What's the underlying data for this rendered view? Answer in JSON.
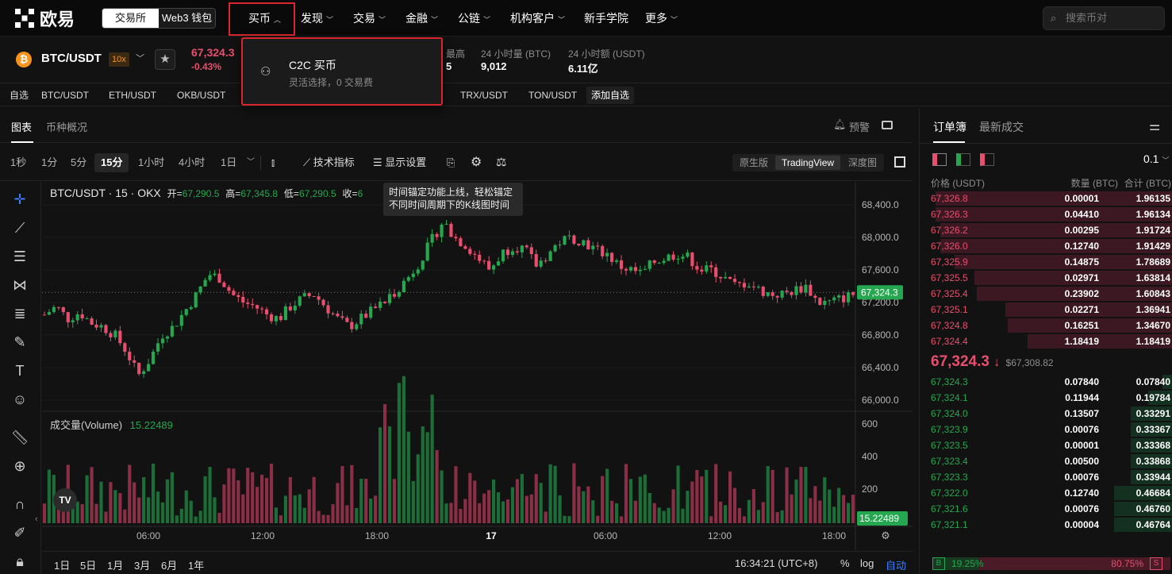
{
  "nav": {
    "brand": "欧易",
    "seg": {
      "exchange": "交易所",
      "wallet": "Web3 钱包"
    },
    "items": [
      {
        "label": "买币"
      },
      {
        "label": "发现"
      },
      {
        "label": "交易"
      },
      {
        "label": "金融"
      },
      {
        "label": "公链"
      },
      {
        "label": "机构客户"
      },
      {
        "label": "新手学院"
      },
      {
        "label": "更多"
      }
    ],
    "search_placeholder": "搜索币对"
  },
  "dropdown": {
    "title": "C2C 买币",
    "subtitle": "灵活选择，0 交易费"
  },
  "ticker": {
    "pair": "BTC/USDT",
    "leverage": "10x",
    "price": "67,324.3",
    "change": "-0.43%",
    "high_label": "最高",
    "high_val": "5",
    "vol_label": "24 小时量 (BTC)",
    "vol_val": "9,012",
    "amt_label": "24 小时额 (USDT)",
    "amt_val": "6.11亿"
  },
  "favbar": {
    "label": "自选",
    "pairs": [
      "BTC/USDT",
      "ETH/USDT",
      "OKB/USDT",
      "TRX/USDT",
      "TON/USDT"
    ],
    "add": "添加自选"
  },
  "tabs": {
    "chart": "图表",
    "overview": "币种概况",
    "alert": "预警"
  },
  "toolbar": {
    "intervals": [
      "1秒",
      "1分",
      "5分",
      "15分",
      "1小时",
      "4小时",
      "1日"
    ],
    "active_interval": "15分",
    "indicators": "技术指标",
    "display": "显示设置",
    "modes": [
      "原生版",
      "TradingView",
      "深度图"
    ]
  },
  "tooltip": {
    "line1": "时间锚定功能上线，轻松锚定",
    "line2": "不同时间周期下的K线图时间"
  },
  "chart": {
    "legend_title": "BTC/USDT · 15 · OKX",
    "open_label": "开=",
    "open": "67,290.5",
    "high_label": "高=",
    "high": "67,345.8",
    "low_label": "低=",
    "low": "67,290.5",
    "close_label": "收=",
    "close": "6",
    "vol_label": "成交量(Volume)",
    "vol_val": "15.22489",
    "price_ticks": [
      "68,400.0",
      "68,000.0",
      "67,600.0",
      "67,200.0",
      "66,800.0",
      "66,400.0",
      "66,000.0"
    ],
    "last_price": "67,324.3",
    "vol_ticks": [
      "600",
      "400",
      "200"
    ],
    "last_vol": "15.22489",
    "time_ticks": [
      "06:00",
      "12:00",
      "18:00",
      "17",
      "06:00",
      "12:00",
      "18:00"
    ]
  },
  "bottombar": {
    "ranges": [
      "1日",
      "5日",
      "1月",
      "3月",
      "6月",
      "1年"
    ],
    "clock": "16:34:21 (UTC+8)",
    "pct": "%",
    "log": "log",
    "auto": "自动"
  },
  "orderbook": {
    "tab_book": "订单簿",
    "tab_trades": "最新成交",
    "precision": "0.1",
    "headers": [
      "价格 (USDT)",
      "数量 (BTC)",
      "合计 (BTC)"
    ],
    "asks": [
      {
        "p": "67,326.8",
        "q": "0.00001",
        "t": "1.96135",
        "d": 0.98
      },
      {
        "p": "67,326.3",
        "q": "0.04410",
        "t": "1.96134",
        "d": 0.98
      },
      {
        "p": "67,326.2",
        "q": "0.00295",
        "t": "1.91724",
        "d": 0.96
      },
      {
        "p": "67,326.0",
        "q": "0.12740",
        "t": "1.91429",
        "d": 0.96
      },
      {
        "p": "67,325.9",
        "q": "0.14875",
        "t": "1.78689",
        "d": 0.9
      },
      {
        "p": "67,325.5",
        "q": "0.02971",
        "t": "1.63814",
        "d": 0.82
      },
      {
        "p": "67,325.4",
        "q": "0.23902",
        "t": "1.60843",
        "d": 0.81
      },
      {
        "p": "67,325.1",
        "q": "0.02271",
        "t": "1.36941",
        "d": 0.69
      },
      {
        "p": "67,324.8",
        "q": "0.16251",
        "t": "1.34670",
        "d": 0.68
      },
      {
        "p": "67,324.4",
        "q": "1.18419",
        "t": "1.18419",
        "d": 0.6
      }
    ],
    "mid_price": "67,324.3",
    "mid_arrow": "↓",
    "mid_usd": "$67,308.82",
    "bids": [
      {
        "p": "67,324.3",
        "q": "0.07840",
        "t": "0.07840",
        "d": 0.04
      },
      {
        "p": "67,324.1",
        "q": "0.11944",
        "t": "0.19784",
        "d": 0.1
      },
      {
        "p": "67,324.0",
        "q": "0.13507",
        "t": "0.33291",
        "d": 0.17
      },
      {
        "p": "67,323.9",
        "q": "0.00076",
        "t": "0.33367",
        "d": 0.17
      },
      {
        "p": "67,323.5",
        "q": "0.00001",
        "t": "0.33368",
        "d": 0.17
      },
      {
        "p": "67,323.4",
        "q": "0.00500",
        "t": "0.33868",
        "d": 0.17
      },
      {
        "p": "67,323.3",
        "q": "0.00076",
        "t": "0.33944",
        "d": 0.17
      },
      {
        "p": "67,322.0",
        "q": "0.12740",
        "t": "0.46684",
        "d": 0.24
      },
      {
        "p": "67,321.6",
        "q": "0.00076",
        "t": "0.46760",
        "d": 0.24
      },
      {
        "p": "67,321.1",
        "q": "0.00004",
        "t": "0.46764",
        "d": 0.24
      }
    ],
    "buy_ratio": "19.25%",
    "sell_ratio": "80.75%",
    "buy_label": "B",
    "sell_label": "S"
  },
  "colors": {
    "up": "#25a750",
    "down": "#e84e6d",
    "highlight": "#d9252d"
  }
}
